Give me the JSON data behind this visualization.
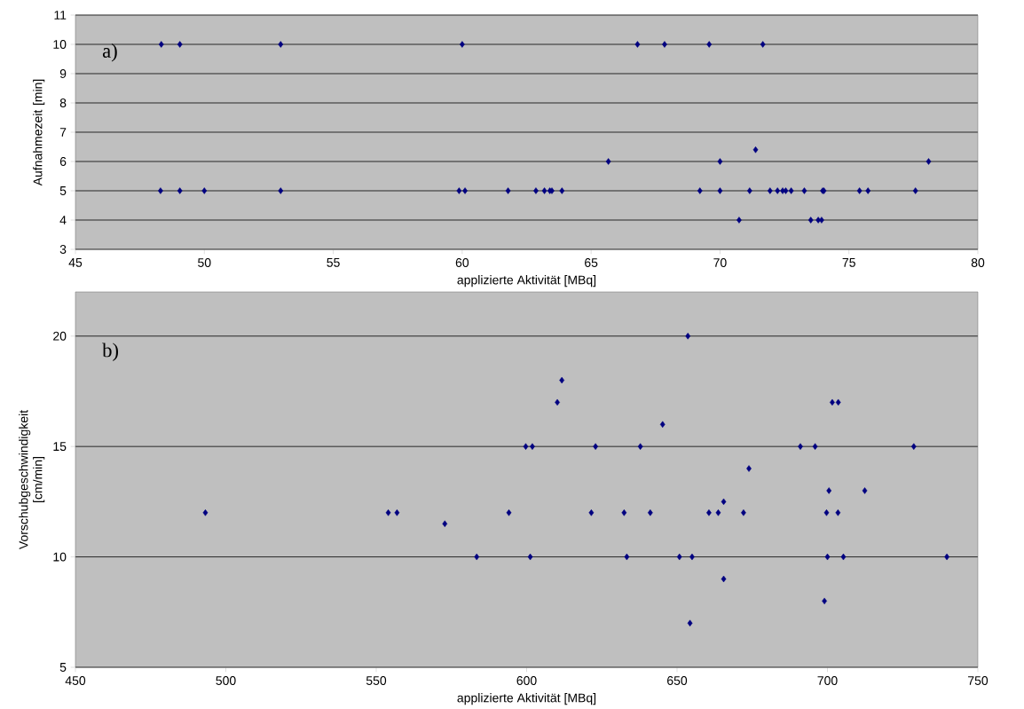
{
  "chart_data": [
    {
      "type": "scatter",
      "xlabel": "applizierte Aktivität [MBq]",
      "ylabel": "Aufnahmezeit [min]",
      "annotations": [
        "a)"
      ],
      "color": "#000080",
      "marker": "diamond",
      "grid": "y",
      "xlim": [
        45,
        80
      ],
      "ylim": [
        3,
        11
      ],
      "xticks": [
        45,
        50,
        55,
        60,
        65,
        70,
        75,
        80
      ],
      "yticks": [
        3,
        4,
        5,
        6,
        7,
        8,
        9,
        10,
        11
      ],
      "x": [
        48.33,
        49.05,
        52.96,
        60.0,
        66.8,
        67.85,
        69.58,
        71.66,
        71.38,
        65.67,
        70.0,
        78.09,
        48.3,
        49.05,
        50.0,
        52.96,
        59.88,
        60.11,
        61.78,
        62.86,
        63.19,
        63.4,
        63.48,
        63.87,
        69.22,
        70.0,
        71.15,
        71.94,
        72.23,
        72.43,
        72.55,
        72.76,
        73.27,
        73.98,
        74.03,
        75.41,
        75.74,
        77.58,
        70.74,
        73.52,
        73.81,
        73.94
      ],
      "values": [
        10,
        10,
        10,
        10,
        10,
        10,
        10,
        10,
        6.4,
        6,
        6,
        6,
        5,
        5,
        5,
        5,
        5,
        5,
        5,
        5,
        5,
        5,
        5,
        5,
        5,
        5,
        5,
        5,
        5,
        5,
        5,
        5,
        5,
        5,
        5,
        5,
        5,
        5,
        4,
        4,
        4,
        4
      ]
    },
    {
      "type": "scatter",
      "xlabel": "applizierte Aktivität [MBq]",
      "ylabel": "Vorschubgeschwindigkeit [cm/min]",
      "annotations": [
        "b)"
      ],
      "color": "#000080",
      "marker": "diamond",
      "grid": "y",
      "xlim": [
        450,
        750
      ],
      "ylim": [
        5,
        22
      ],
      "xticks": [
        450,
        500,
        550,
        600,
        650,
        700,
        750
      ],
      "yticks": [
        5,
        10,
        15,
        20
      ],
      "x": [
        493.2,
        554.0,
        556.9,
        572.8,
        583.4,
        594.1,
        653.6,
        611.7,
        610.2,
        645.2,
        599.7,
        601.9,
        622.9,
        637.8,
        691.0,
        695.9,
        728.7,
        701.6,
        703.6,
        673.9,
        700.5,
        712.4,
        665.5,
        621.5,
        632.4,
        641.1,
        660.6,
        663.7,
        672.1,
        699.7,
        703.5,
        601.2,
        633.3,
        650.8,
        655.0,
        700.0,
        705.3,
        739.7,
        665.5,
        699.0,
        654.3
      ],
      "values": [
        12,
        12,
        12,
        11.5,
        10,
        12,
        20,
        18,
        17,
        16,
        15,
        15,
        15,
        15,
        15,
        15,
        15,
        17,
        17,
        14,
        13,
        13,
        12.5,
        12,
        12,
        12,
        12,
        12,
        12,
        12,
        12,
        10,
        10,
        10,
        10,
        10,
        10,
        10,
        9,
        8,
        7
      ]
    }
  ]
}
